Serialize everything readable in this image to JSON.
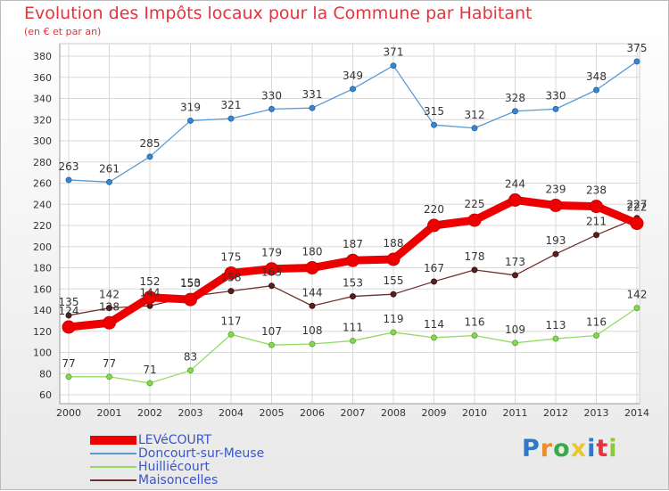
{
  "page": {
    "title": "Evolution des Impôts locaux pour la Commune par Habitant",
    "subtitle": "(en € et par an)"
  },
  "logo": {
    "text": "Proxiti",
    "colors": [
      "#2f78c8",
      "#e8902c",
      "#3aaa48",
      "#e8c830",
      "#2f78c8",
      "#e8323c",
      "#8cc83c"
    ]
  },
  "chart_data": {
    "type": "line",
    "title": "Evolution des Impôts locaux pour la Commune par Habitant",
    "subtitle": "(en € et par an)",
    "x": [
      "2000",
      "2001",
      "2002",
      "2003",
      "2004",
      "2005",
      "2006",
      "2007",
      "2008",
      "2009",
      "2010",
      "2011",
      "2012",
      "2013",
      "2014"
    ],
    "ylim": [
      60,
      380
    ],
    "yticks": [
      60,
      80,
      100,
      120,
      140,
      160,
      180,
      200,
      220,
      240,
      260,
      280,
      300,
      320,
      340,
      360,
      380
    ],
    "grid": true,
    "legend_position": "bottom-left",
    "series": [
      {
        "name": "LEVéCOURT",
        "color": "#ee0000",
        "values": [
          124,
          128,
          152,
          150,
          175,
          179,
          180,
          187,
          188,
          220,
          225,
          244,
          239,
          238,
          222
        ]
      },
      {
        "name": "Doncourt-sur-Meuse",
        "color": "#5a9ad2",
        "values": [
          263,
          261,
          285,
          319,
          321,
          330,
          331,
          349,
          371,
          315,
          312,
          328,
          330,
          348,
          375
        ]
      },
      {
        "name": "Huilliécourt",
        "color": "#90dc60",
        "values": [
          77,
          77,
          71,
          83,
          117,
          107,
          108,
          111,
          119,
          114,
          116,
          109,
          113,
          116,
          142
        ]
      },
      {
        "name": "Maisoncelles",
        "color": "#703030",
        "values": [
          135,
          142,
          144,
          153,
          158,
          163,
          144,
          153,
          155,
          167,
          178,
          173,
          193,
          211,
          227
        ]
      }
    ]
  }
}
